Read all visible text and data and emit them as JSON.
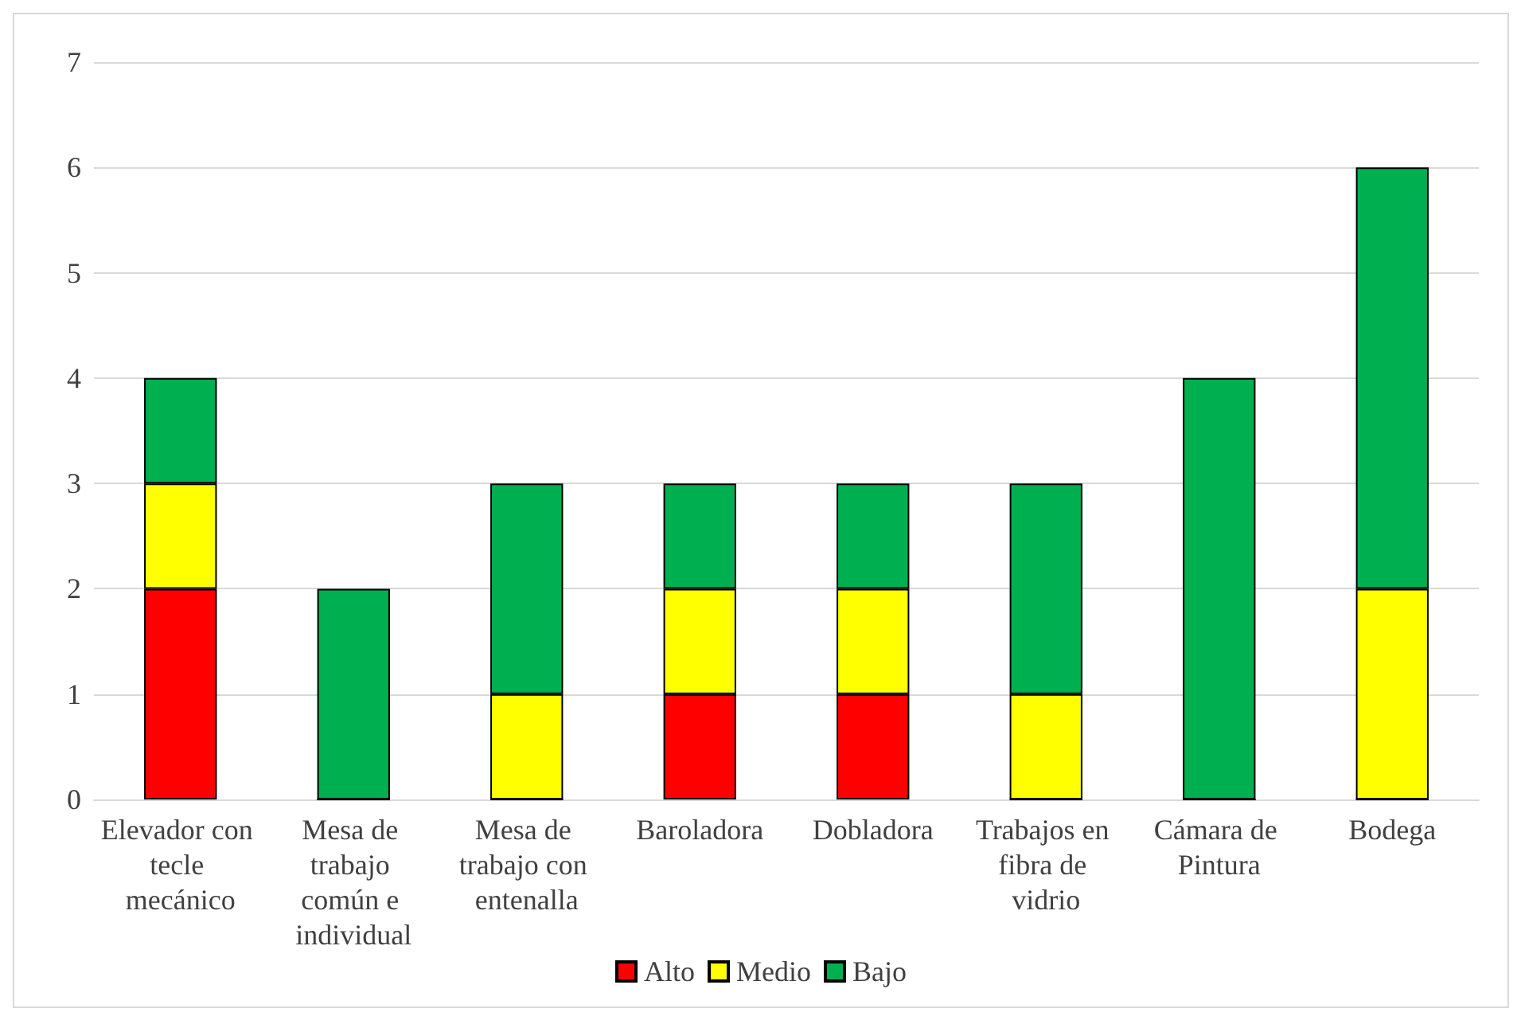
{
  "chart_data": {
    "type": "bar",
    "stacked": true,
    "categories": [
      "Elevador con tecle mecánico",
      "Mesa de trabajo común e individual",
      "Mesa de trabajo con entenalla",
      "Baroladora",
      "Dobladora",
      "Trabajos en fibra de vidrio",
      "Cámara de Pintura",
      "Bodega"
    ],
    "series": [
      {
        "name": "Alto",
        "color": "#ff0000",
        "values": [
          2,
          0,
          0,
          1,
          1,
          0,
          0,
          0
        ]
      },
      {
        "name": "Medio",
        "color": "#ffff00",
        "values": [
          1,
          0,
          1,
          1,
          1,
          1,
          0,
          2
        ]
      },
      {
        "name": "Bajo",
        "color": "#00b050",
        "values": [
          1,
          2,
          2,
          1,
          1,
          2,
          4,
          4
        ]
      }
    ],
    "ylim": [
      0,
      7
    ],
    "yticks": [
      0,
      1,
      2,
      3,
      4,
      5,
      6,
      7
    ],
    "grid": "y",
    "legend": "bottom"
  }
}
